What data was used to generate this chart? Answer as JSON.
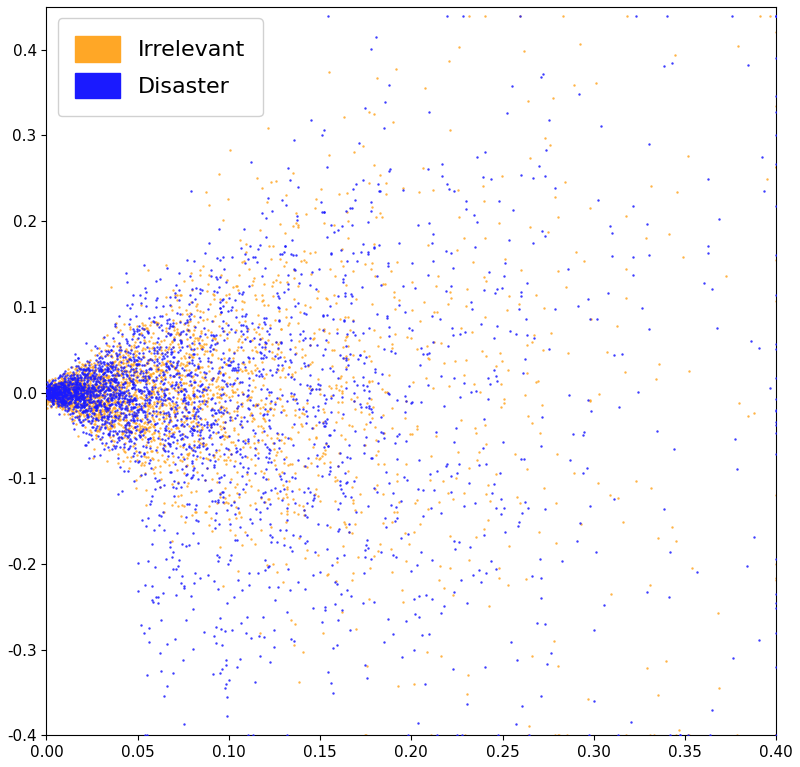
{
  "title": "",
  "irrelevant_color": "#FFA726",
  "disaster_color": "#1a1aff",
  "xlim": [
    0.0,
    0.4
  ],
  "ylim": [
    -0.4,
    0.45
  ],
  "xticks": [
    0.0,
    0.05,
    0.1,
    0.15,
    0.2,
    0.25,
    0.3,
    0.35,
    0.4
  ],
  "yticks": [
    -0.4,
    -0.3,
    -0.2,
    -0.1,
    0.0,
    0.1,
    0.2,
    0.3,
    0.4
  ],
  "legend_labels": [
    "Irrelevant",
    "Disaster"
  ],
  "n_irrelevant": 3000,
  "n_disaster": 3000,
  "marker_size": 3,
  "alpha": 0.85,
  "figsize": [
    8.0,
    7.67
  ],
  "dpi": 100,
  "background_color": "#ffffff",
  "seed": 42
}
